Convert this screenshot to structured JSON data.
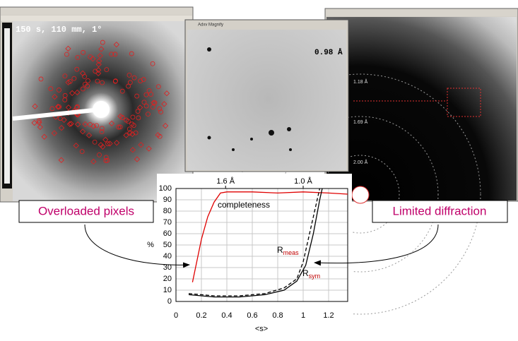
{
  "windows": {
    "left": {
      "overlay": "150 s, 110 mm, 1°"
    },
    "magnify": {
      "title": "Adxv Magnify",
      "overlay": "0.98 Å"
    },
    "right": {
      "rings": [
        "1.18 Å",
        "1.69 Å",
        "2.00 Å"
      ]
    }
  },
  "callouts": [
    "Overloaded pixels",
    "Limited diffraction"
  ],
  "chart_data": {
    "type": "line",
    "x_label": "<s>",
    "y_label": "%",
    "xlim": [
      0,
      1.35
    ],
    "ylim": [
      0,
      100
    ],
    "xticks": [
      0,
      0.2,
      0.4,
      0.6,
      0.8,
      1,
      1.2
    ],
    "yticks": [
      0,
      10,
      20,
      30,
      40,
      50,
      60,
      70,
      80,
      90,
      100
    ],
    "top_ticks": [
      {
        "value": 0.39,
        "label": "1.6 Å"
      },
      {
        "value": 1.0,
        "label": "1.0 Å"
      }
    ],
    "grid": true,
    "series": [
      {
        "name": "completeness",
        "color": "#e00000",
        "dashed": false,
        "x": [
          0.13,
          0.2,
          0.25,
          0.3,
          0.35,
          0.4,
          0.6,
          0.8,
          1.0,
          1.2,
          1.35
        ],
        "values": [
          17,
          55,
          75,
          88,
          96,
          97,
          97,
          96,
          97,
          96,
          95
        ]
      },
      {
        "name": "R",
        "subscript": "meas",
        "color": "#000000",
        "dashed": true,
        "x": [
          0.1,
          0.2,
          0.3,
          0.5,
          0.7,
          0.85,
          0.95,
          1.0,
          1.05,
          1.1,
          1.13
        ],
        "values": [
          7,
          6,
          5,
          5,
          7,
          12,
          20,
          35,
          60,
          85,
          100
        ]
      },
      {
        "name": "R",
        "subscript": "sym",
        "color": "#000000",
        "dashed": false,
        "x": [
          0.1,
          0.2,
          0.3,
          0.5,
          0.7,
          0.85,
          0.95,
          1.02,
          1.08,
          1.13,
          1.15
        ],
        "values": [
          6,
          5,
          4,
          4,
          6,
          10,
          18,
          32,
          60,
          90,
          100
        ]
      }
    ]
  }
}
